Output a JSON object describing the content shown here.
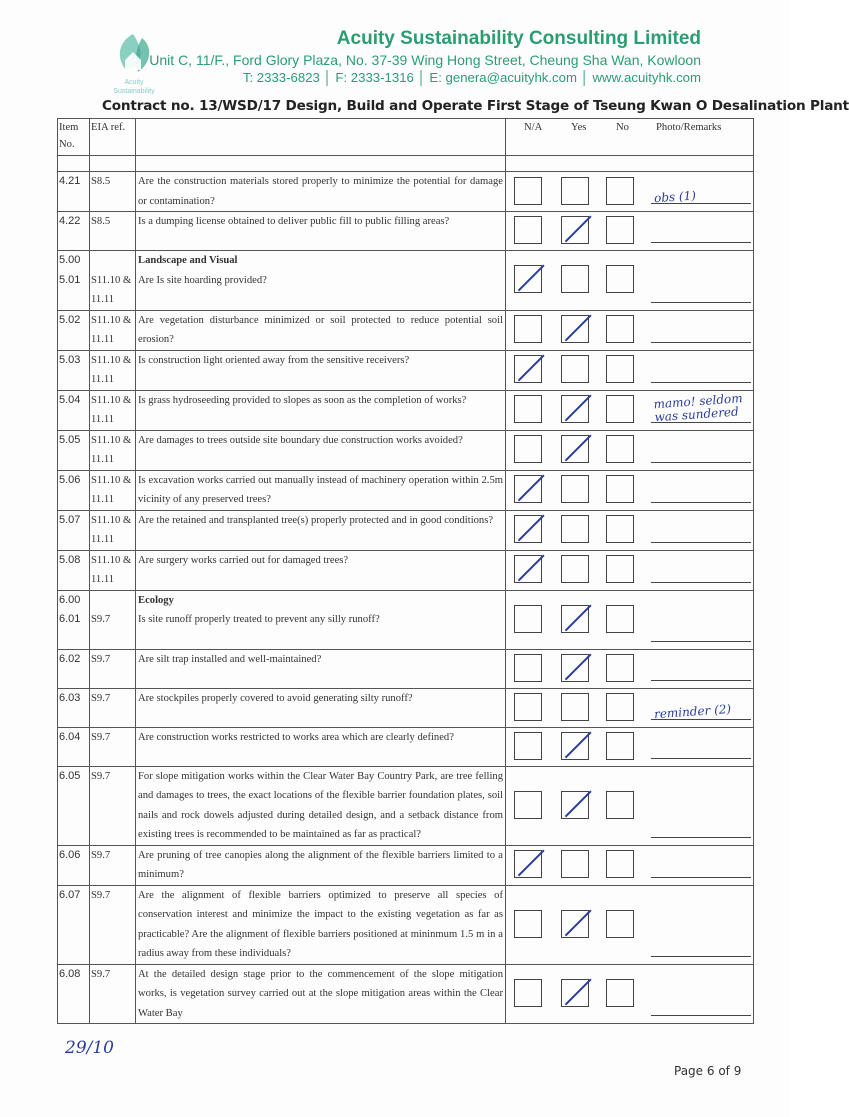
{
  "header": {
    "logo_text": "Acuity Sustainability",
    "company": "Acuity Sustainability Consulting Limited",
    "address": "Unit C, 11/F., Ford Glory Plaza, No. 37-39 Wing Hong Street, Cheung Sha Wan, Kowloon",
    "contact": "T: 2333-6823 │ F: 2333-1316 │ E: genera@acuityhk.com │ www.acuityhk.com",
    "brand_color": "#2a9d72"
  },
  "title": "Contract no.  13/WSD/17 Design, Build and Operate First Stage of Tseung Kwan O Desalination Plant",
  "columns": {
    "item": "Item No.",
    "eia": "EIA ref.",
    "na": "N/A",
    "yes": "Yes",
    "no": "No",
    "remarks": "Photo/Remarks"
  },
  "rows": [
    {
      "item": "4.21",
      "eia": "S8.5",
      "q": "Are the construction materials stored properly to minimize the potential for damage or contamination?",
      "check": "",
      "remark": "obs (1)"
    },
    {
      "item": "4.22",
      "eia": "S8.5",
      "q": "Is a dumping license obtained to deliver public fill to public filling areas?",
      "check": "yes",
      "remark": ""
    },
    {
      "item": "5.00\n5.01",
      "eia": "\nS11.10 & 11.11",
      "section": "Landscape and Visual",
      "q": "Are Is site hoarding provided?",
      "check": "na",
      "remark": ""
    },
    {
      "item": "5.02",
      "eia": "S11.10 & 11.11",
      "q": "Are vegetation disturbance minimized or soil protected to reduce potential soil erosion?",
      "check": "yes",
      "remark": ""
    },
    {
      "item": "5.03",
      "eia": "S11.10 & 11.11",
      "q": "Is construction light oriented away from the sensitive receivers?",
      "check": "na",
      "remark": ""
    },
    {
      "item": "5.04",
      "eia": "S11.10 & 11.11",
      "q": "Is grass hydroseeding provided to slopes as soon as the completion of works?",
      "check": "yes",
      "remark": "mamo! seldom was sundered"
    },
    {
      "item": "5.05",
      "eia": "S11.10 & 11.11",
      "q": "Are damages to trees outside site boundary due construction works avoided?",
      "check": "yes",
      "remark": ""
    },
    {
      "item": "5.06",
      "eia": "S11.10 & 11.11",
      "q": "Is excavation works carried out manually instead of machinery operation within 2.5m vicinity of any preserved trees?",
      "check": "na",
      "remark": ""
    },
    {
      "item": "5.07",
      "eia": "S11.10 & 11.11",
      "q": "Are the retained and transplanted tree(s) properly protected and in good conditions?",
      "check": "na",
      "remark": ""
    },
    {
      "item": "5.08",
      "eia": "S11.10 & 11.11",
      "q": "Are surgery works carried out for damaged trees?",
      "check": "na",
      "remark": ""
    },
    {
      "item": "6.00\n6.01",
      "eia": "\nS9.7",
      "section": "Ecology",
      "q": "Is site runoff properly treated to prevent any silly runoff?",
      "check": "yes",
      "remark": ""
    },
    {
      "item": "6.02",
      "eia": "S9.7",
      "q": "Are silt trap installed and well-maintained?",
      "check": "yes",
      "remark": ""
    },
    {
      "item": "6.03",
      "eia": "S9.7",
      "q": "Are stockpiles properly covered to avoid generating silty runoff?",
      "check": "",
      "remark": "reminder (2)"
    },
    {
      "item": "6.04",
      "eia": "S9.7",
      "q": "Are construction works restricted to works area which are clearly defined?",
      "check": "yes",
      "remark": ""
    },
    {
      "item": "6.05",
      "eia": "S9.7",
      "q": "For slope mitigation works within the Clear Water Bay Country Park, are tree felling and damages to trees, the exact locations of the flexible barrier foundation plates, soil nails and rock dowels adjusted during detailed design, and a setback distance from existing trees is recommended to be maintained as far as practical?",
      "check": "yes",
      "remark": ""
    },
    {
      "item": "6.06",
      "eia": "S9.7",
      "q": "Are pruning of tree canopies along the alignment of the flexible barriers limited to a minimum?",
      "check": "na",
      "remark": ""
    },
    {
      "item": "6.07",
      "eia": "S9.7",
      "q": "Are the alignment of flexible barriers optimized to preserve all species of conservation interest and minimize the impact to the existing vegetation as far as practicable? Are the alignment of flexible barriers positioned at mininmum 1.5 m in a radius away from these individuals?",
      "check": "yes",
      "remark": ""
    },
    {
      "item": "6.08",
      "eia": "S9.7",
      "q": "At the detailed design stage prior to the commencement of the slope mitigation works, is vegetation survey carried out at the slope mitigation areas within the Clear Water Bay",
      "check": "yes",
      "remark": ""
    }
  ],
  "handwritten_date": "29/10",
  "footer": {
    "page": "Page 6 of 9"
  }
}
